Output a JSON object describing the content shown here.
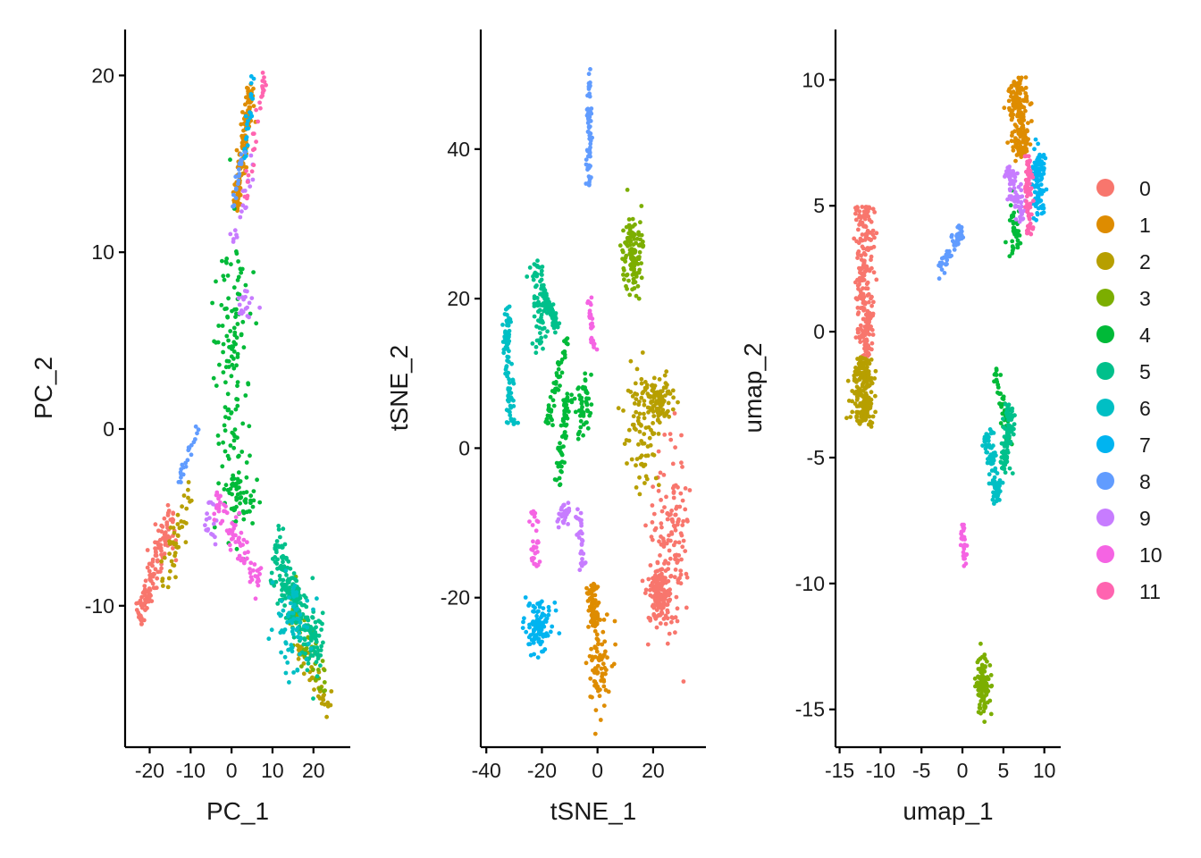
{
  "chart_data": [
    {
      "type": "scatter",
      "id": "pca",
      "xlabel": "PC_1",
      "ylabel": "PC_2",
      "xlim": [
        -26,
        29
      ],
      "ylim": [
        -18,
        22.6
      ],
      "xticks": [
        -20,
        -10,
        0,
        10,
        20
      ],
      "xtick_labels": [
        "-20",
        "-10",
        "0",
        "10",
        "20"
      ],
      "yticks": [
        -10,
        0,
        10,
        20
      ],
      "ytick_labels": [
        "-10",
        "0",
        "10",
        "20"
      ],
      "point_size": 2.4,
      "clusters": [
        {
          "cluster": "0",
          "count": 140,
          "regions": [
            {
              "type": "seg",
              "a": [
                -23,
                -10.5
              ],
              "b": [
                -14,
                -5
              ],
              "w": 1.2
            }
          ]
        },
        {
          "cluster": "1",
          "count": 140,
          "regions": [
            {
              "type": "seg",
              "a": [
                1,
                12.5
              ],
              "b": [
                5,
                19.5
              ],
              "w": 0.9
            }
          ]
        },
        {
          "cluster": "2",
          "count": 90,
          "regions": [
            {
              "type": "seg",
              "a": [
                -17,
                -9
              ],
              "b": [
                -10,
                -3.5
              ],
              "w": 1.5
            },
            {
              "type": "seg",
              "a": [
                16,
                -12
              ],
              "b": [
                24,
                -16
              ],
              "w": 1.0
            }
          ]
        },
        {
          "cluster": "3",
          "count": 60,
          "regions": [
            {
              "type": "seg",
              "a": [
                14,
                -10
              ],
              "b": [
                23,
                -14.5
              ],
              "w": 1.2
            }
          ]
        },
        {
          "cluster": "4",
          "count": 190,
          "regions": [
            {
              "type": "blob",
              "c": [
                0,
                4
              ],
              "r": [
                5,
                8
              ]
            },
            {
              "type": "seg",
              "a": [
                -1,
                10
              ],
              "b": [
                1,
                -1
              ],
              "w": 3.0
            },
            {
              "type": "blob",
              "c": [
                2,
                -4
              ],
              "r": [
                4,
                2
              ]
            }
          ]
        },
        {
          "cluster": "5",
          "count": 220,
          "regions": [
            {
              "type": "seg",
              "a": [
                10,
                -7
              ],
              "b": [
                22,
                -13
              ],
              "w": 1.8
            }
          ]
        },
        {
          "cluster": "6",
          "count": 70,
          "regions": [
            {
              "type": "blob",
              "c": [
                15,
                -11
              ],
              "r": [
                4,
                2.5
              ]
            }
          ]
        },
        {
          "cluster": "7",
          "count": 25,
          "regions": [
            {
              "type": "seg",
              "a": [
                3,
                15
              ],
              "b": [
                5.5,
                20
              ],
              "w": 0.5
            }
          ]
        },
        {
          "cluster": "8",
          "count": 45,
          "regions": [
            {
              "type": "seg",
              "a": [
                -13,
                -3
              ],
              "b": [
                -8,
                0.3
              ],
              "w": 0.6
            },
            {
              "type": "seg",
              "a": [
                0,
                12
              ],
              "b": [
                3,
                16
              ],
              "w": 0.6
            }
          ]
        },
        {
          "cluster": "9",
          "count": 55,
          "regions": [
            {
              "type": "seg",
              "a": [
                0,
                10.5
              ],
              "b": [
                6,
                15.5
              ],
              "w": 0.8
            },
            {
              "type": "blob",
              "c": [
                4,
                7
              ],
              "r": [
                3,
                1
              ]
            },
            {
              "type": "blob",
              "c": [
                -5,
                -5
              ],
              "r": [
                2,
                1.5
              ]
            }
          ]
        },
        {
          "cluster": "10",
          "count": 75,
          "regions": [
            {
              "type": "seg",
              "a": [
                -4,
                -4
              ],
              "b": [
                7,
                -8.5
              ],
              "w": 1.0
            }
          ]
        },
        {
          "cluster": "11",
          "count": 30,
          "regions": [
            {
              "type": "seg",
              "a": [
                3,
                13
              ],
              "b": [
                8,
                20
              ],
              "w": 0.7
            }
          ]
        }
      ]
    },
    {
      "type": "scatter",
      "id": "tsne",
      "xlabel": "tSNE_1",
      "ylabel": "tSNE_2",
      "xlim": [
        -42,
        39
      ],
      "ylim": [
        -40,
        56
      ],
      "xticks": [
        -40,
        -20,
        0,
        20
      ],
      "xtick_labels": [
        "-40",
        "-20",
        "0",
        "20"
      ],
      "yticks": [
        -20,
        0,
        20,
        40
      ],
      "ytick_labels": [
        "-20",
        "0",
        "20",
        "40"
      ],
      "point_size": 2.4,
      "clusters": [
        {
          "cluster": "0",
          "count": 280,
          "regions": [
            {
              "type": "blob",
              "c": [
                27,
                -12
              ],
              "r": [
                7,
                12
              ]
            },
            {
              "type": "blob",
              "c": [
                22,
                -20
              ],
              "r": [
                4,
                4
              ]
            }
          ]
        },
        {
          "cluster": "1",
          "count": 160,
          "regions": [
            {
              "type": "blob",
              "c": [
                1,
                -29
              ],
              "r": [
                4,
                6
              ]
            },
            {
              "type": "seg",
              "a": [
                -2,
                -18
              ],
              "b": [
                -1,
                -24
              ],
              "w": 1.5
            }
          ]
        },
        {
          "cluster": "2",
          "count": 180,
          "regions": [
            {
              "type": "blob",
              "c": [
                16,
                3
              ],
              "r": [
                6,
                8
              ]
            },
            {
              "type": "blob",
              "c": [
                22,
                6
              ],
              "r": [
                4,
                3
              ]
            }
          ]
        },
        {
          "cluster": "3",
          "count": 120,
          "regions": [
            {
              "type": "blob",
              "c": [
                13,
                26
              ],
              "r": [
                4,
                5
              ]
            }
          ]
        },
        {
          "cluster": "4",
          "count": 170,
          "regions": [
            {
              "type": "seg",
              "a": [
                -11,
                8
              ],
              "b": [
                -14,
                -5
              ],
              "w": 1.5
            },
            {
              "type": "blob",
              "c": [
                -5,
                6
              ],
              "r": [
                3,
                4
              ]
            },
            {
              "type": "seg",
              "a": [
                -18,
                3
              ],
              "b": [
                -11,
                15
              ],
              "w": 1.2
            }
          ]
        },
        {
          "cluster": "5",
          "count": 150,
          "regions": [
            {
              "type": "seg",
              "a": [
                -22,
                25
              ],
              "b": [
                -20,
                13
              ],
              "w": 2.5
            },
            {
              "type": "seg",
              "a": [
                -14,
                16
              ],
              "b": [
                -20,
                21
              ],
              "w": 1.0
            }
          ]
        },
        {
          "cluster": "6",
          "count": 90,
          "regions": [
            {
              "type": "seg",
              "a": [
                -33,
                19
              ],
              "b": [
                -31,
                3
              ],
              "w": 1.5
            }
          ]
        },
        {
          "cluster": "7",
          "count": 110,
          "regions": [
            {
              "type": "blob",
              "c": [
                -21,
                -24
              ],
              "r": [
                5,
                3.5
              ]
            }
          ]
        },
        {
          "cluster": "8",
          "count": 70,
          "regions": [
            {
              "type": "seg",
              "a": [
                -3,
                51
              ],
              "b": [
                -3,
                35
              ],
              "w": 0.8
            }
          ]
        },
        {
          "cluster": "9",
          "count": 60,
          "regions": [
            {
              "type": "seg",
              "a": [
                -7,
                -8
              ],
              "b": [
                -5,
                -16
              ],
              "w": 1.2
            },
            {
              "type": "blob",
              "c": [
                -12,
                -9
              ],
              "r": [
                2,
                1.5
              ]
            }
          ]
        },
        {
          "cluster": "10",
          "count": 60,
          "regions": [
            {
              "type": "seg",
              "a": [
                -23,
                -8
              ],
              "b": [
                -22,
                -16
              ],
              "w": 1.5
            },
            {
              "type": "seg",
              "a": [
                -3,
                20
              ],
              "b": [
                -1,
                12
              ],
              "w": 1.0
            }
          ]
        }
      ]
    },
    {
      "type": "scatter",
      "id": "umap",
      "xlabel": "umap_1",
      "ylabel": "umap_2",
      "xlim": [
        -15.5,
        12
      ],
      "ylim": [
        -16.5,
        12
      ],
      "xticks": [
        -15,
        -10,
        -5,
        0,
        5,
        10
      ],
      "xtick_labels": [
        "-15",
        "-10",
        "-5",
        "0",
        "5",
        "10"
      ],
      "yticks": [
        -15,
        -10,
        -5,
        0,
        5,
        10
      ],
      "ytick_labels": [
        "-15",
        "-10",
        "-5",
        "0",
        "5",
        "10"
      ],
      "point_size": 2.4,
      "clusters": [
        {
          "cluster": "0",
          "count": 230,
          "regions": [
            {
              "type": "seg",
              "a": [
                -12,
                5
              ],
              "b": [
                -11.8,
                -1
              ],
              "w": 1.0
            }
          ]
        },
        {
          "cluster": "1",
          "count": 190,
          "regions": [
            {
              "type": "seg",
              "a": [
                6.5,
                10
              ],
              "b": [
                7.5,
                7
              ],
              "w": 1.0
            }
          ]
        },
        {
          "cluster": "2",
          "count": 200,
          "regions": [
            {
              "type": "seg",
              "a": [
                -12,
                -1
              ],
              "b": [
                -12.2,
                -3.7
              ],
              "w": 1.2
            }
          ]
        },
        {
          "cluster": "3",
          "count": 110,
          "regions": [
            {
              "type": "blob",
              "c": [
                2.5,
                -14
              ],
              "r": [
                0.8,
                1.1
              ]
            }
          ]
        },
        {
          "cluster": "4",
          "count": 90,
          "regions": [
            {
              "type": "seg",
              "a": [
                4,
                -1.5
              ],
              "b": [
                6,
                -4.5
              ],
              "w": 0.5
            },
            {
              "type": "blob",
              "c": [
                6.5,
                4
              ],
              "r": [
                0.8,
                1.2
              ]
            }
          ]
        },
        {
          "cluster": "5",
          "count": 100,
          "regions": [
            {
              "type": "seg",
              "a": [
                6,
                -3
              ],
              "b": [
                5,
                -5.5
              ],
              "w": 0.6
            }
          ]
        },
        {
          "cluster": "6",
          "count": 90,
          "regions": [
            {
              "type": "seg",
              "a": [
                3,
                -4
              ],
              "b": [
                4.5,
                -6.7
              ],
              "w": 0.6
            }
          ]
        },
        {
          "cluster": "7",
          "count": 110,
          "regions": [
            {
              "type": "blob",
              "c": [
                9.3,
                6
              ],
              "r": [
                0.8,
                1.4
              ]
            }
          ]
        },
        {
          "cluster": "8",
          "count": 60,
          "regions": [
            {
              "type": "seg",
              "a": [
                -3,
                2.4
              ],
              "b": [
                0,
                4
              ],
              "w": 0.3
            }
          ]
        },
        {
          "cluster": "9",
          "count": 70,
          "regions": [
            {
              "type": "seg",
              "a": [
                5.5,
                6.5
              ],
              "b": [
                7.5,
                4.5
              ],
              "w": 0.5
            }
          ]
        },
        {
          "cluster": "10",
          "count": 25,
          "regions": [
            {
              "type": "seg",
              "a": [
                0,
                -7.5
              ],
              "b": [
                0.3,
                -9.3
              ],
              "w": 0.3
            }
          ]
        },
        {
          "cluster": "11",
          "count": 70,
          "regions": [
            {
              "type": "seg",
              "a": [
                8,
                7
              ],
              "b": [
                8.2,
                3.8
              ],
              "w": 0.4
            }
          ]
        }
      ]
    }
  ],
  "legend": {
    "placement": "right",
    "items": [
      {
        "label": "0",
        "color": "#F8766D"
      },
      {
        "label": "1",
        "color": "#DE8C00"
      },
      {
        "label": "2",
        "color": "#B79F00"
      },
      {
        "label": "3",
        "color": "#7CAE00"
      },
      {
        "label": "4",
        "color": "#00BA38"
      },
      {
        "label": "5",
        "color": "#00C08B"
      },
      {
        "label": "6",
        "color": "#00BFC4"
      },
      {
        "label": "7",
        "color": "#00B4F0"
      },
      {
        "label": "8",
        "color": "#619CFF"
      },
      {
        "label": "9",
        "color": "#C77CFF"
      },
      {
        "label": "10",
        "color": "#F564E3"
      },
      {
        "label": "11",
        "color": "#FF64B0"
      }
    ]
  }
}
